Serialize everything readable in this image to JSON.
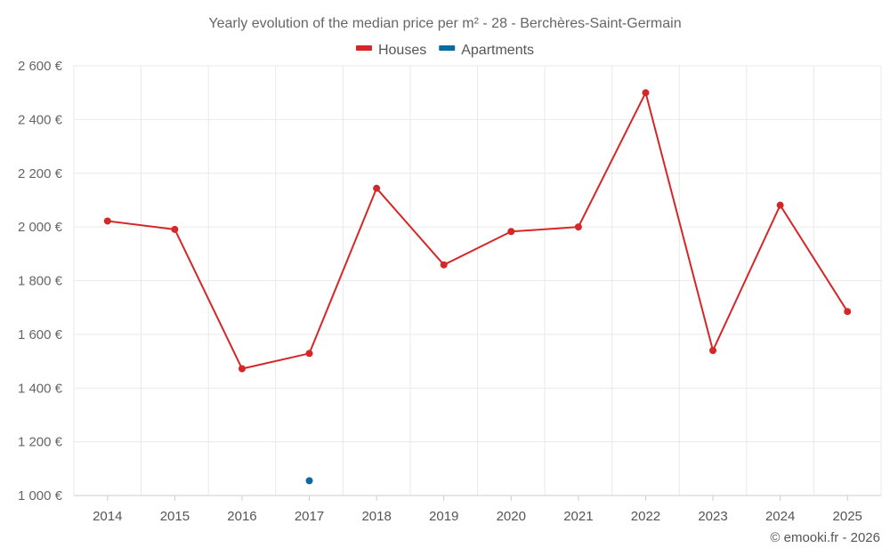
{
  "chart_data": {
    "type": "line",
    "title": "Yearly evolution of the median price per m² - 28 - Berchères-Saint-Germain",
    "categories": [
      "2014",
      "2015",
      "2016",
      "2017",
      "2018",
      "2019",
      "2020",
      "2021",
      "2022",
      "2023",
      "2024",
      "2025"
    ],
    "series": [
      {
        "name": "Houses",
        "color": "#d62728",
        "values": [
          2022,
          1991,
          1472,
          1529,
          2144,
          1859,
          1983,
          2000,
          2500,
          1540,
          2081,
          1685
        ]
      },
      {
        "name": "Apartments",
        "color": "#0b6aa2",
        "values": [
          null,
          null,
          null,
          1055,
          null,
          null,
          null,
          null,
          null,
          null,
          null,
          null
        ]
      }
    ],
    "ylim": [
      1000,
      2600
    ],
    "yticks": [
      1000,
      1200,
      1400,
      1600,
      1800,
      2000,
      2200,
      2400,
      2600
    ],
    "ytick_labels": [
      "1 000 €",
      "1 200 €",
      "1 400 €",
      "1 600 €",
      "1 800 €",
      "2 000 €",
      "2 200 €",
      "2 400 €",
      "2 600 €"
    ],
    "grid": true,
    "legend_position": "top-center",
    "xlabel": "",
    "ylabel": ""
  },
  "footer": {
    "credit": "© emooki.fr - 2026"
  }
}
